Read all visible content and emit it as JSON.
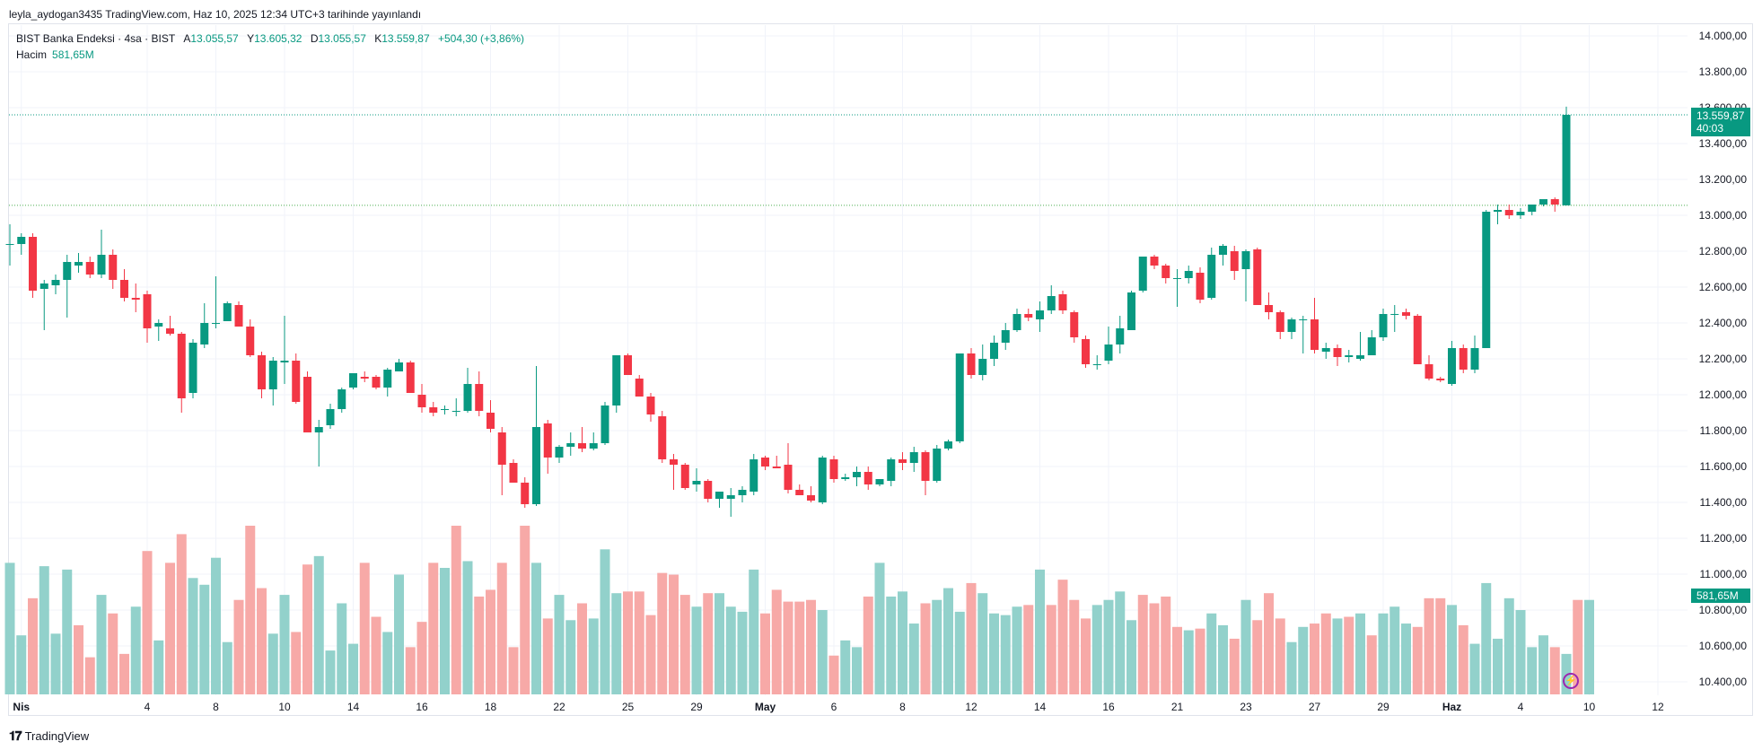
{
  "publish_header": "leyla_aydogan3435 TradingView.com, Haz 10, 2025 12:34 UTC+3 tarihinde yayınlandı",
  "legend": {
    "symbol": "BIST Banka Endeksi · 4sa · BIST",
    "open_label": "A",
    "open": "13.055,57",
    "high_label": "Y",
    "high": "13.605,32",
    "low_label": "D",
    "low": "13.055,57",
    "close_label": "K",
    "close": "13.559,87",
    "change": "+504,30 (+3,86%)",
    "volume_label": "Hacim",
    "volume": "581,65M"
  },
  "price_badge": {
    "price": "13.559,87",
    "countdown": "40:03"
  },
  "volume_badge": "581,65M",
  "brand": "TradingView",
  "colors": {
    "up": "#089981",
    "down": "#f23645",
    "up_vol": "#92d1cb",
    "down_vol": "#f7a9a7",
    "grid": "#f0f3fa"
  },
  "chart_data": {
    "type": "candlestick",
    "y_axis_ticks": [
      "14.000,00",
      "13.800,00",
      "13.600,00",
      "13.400,00",
      "13.200,00",
      "13.000,00",
      "12.800,00",
      "12.600,00",
      "12.400,00",
      "12.200,00",
      "12.000,00",
      "11.800,00",
      "11.600,00",
      "11.400,00",
      "11.200,00",
      "11.000,00",
      "10.800,00",
      "10.600,00",
      "10.400,00"
    ],
    "ylim": [
      10300,
      14000
    ],
    "x_axis_labels": [
      "Nis",
      "4",
      "8",
      "10",
      "14",
      "16",
      "18",
      "22",
      "25",
      "29",
      "May",
      "6",
      "8",
      "12",
      "14",
      "16",
      "21",
      "23",
      "27",
      "29",
      "Haz",
      "4",
      "10",
      "12"
    ],
    "x_axis_label_positions": [
      1,
      12,
      18,
      24,
      30,
      36,
      42,
      48,
      54,
      60,
      66,
      72,
      78,
      84,
      90,
      96,
      102,
      108,
      114,
      120,
      126,
      132,
      138,
      144
    ],
    "last_price_line": 13559.87,
    "prev_close_line": 13055.57,
    "candles": [
      [
        12840,
        12950,
        12720,
        12840
      ],
      [
        12840,
        12900,
        12780,
        12880
      ],
      [
        12880,
        12900,
        12540,
        12580
      ],
      [
        12590,
        12640,
        12360,
        12620
      ],
      [
        12610,
        12670,
        12560,
        12640
      ],
      [
        12640,
        12780,
        12430,
        12740
      ],
      [
        12720,
        12790,
        12680,
        12740
      ],
      [
        12740,
        12770,
        12650,
        12670
      ],
      [
        12670,
        12920,
        12650,
        12780
      ],
      [
        12780,
        12810,
        12590,
        12640
      ],
      [
        12640,
        12700,
        12520,
        12540
      ],
      [
        12540,
        12620,
        12460,
        12530
      ],
      [
        12560,
        12580,
        12290,
        12370
      ],
      [
        12380,
        12420,
        12300,
        12400
      ],
      [
        12370,
        12440,
        12330,
        12340
      ],
      [
        12340,
        12350,
        11900,
        11980
      ],
      [
        12010,
        12310,
        11980,
        12290
      ],
      [
        12280,
        12510,
        12260,
        12400
      ],
      [
        12400,
        12660,
        12370,
        12400
      ],
      [
        12410,
        12520,
        12410,
        12510
      ],
      [
        12500,
        12520,
        12380,
        12380
      ],
      [
        12380,
        12420,
        12210,
        12220
      ],
      [
        12220,
        12240,
        11980,
        12030
      ],
      [
        12030,
        12210,
        11940,
        12190
      ],
      [
        12180,
        12440,
        12060,
        12190
      ],
      [
        12190,
        12230,
        11950,
        11960
      ],
      [
        12100,
        12130,
        11790,
        11790
      ],
      [
        11790,
        11860,
        11600,
        11820
      ],
      [
        11830,
        11950,
        11810,
        11920
      ],
      [
        11920,
        12040,
        11900,
        12030
      ],
      [
        12040,
        12120,
        12030,
        12120
      ],
      [
        12100,
        12130,
        12070,
        12090
      ],
      [
        12100,
        12110,
        12030,
        12040
      ],
      [
        12040,
        12150,
        11990,
        12140
      ],
      [
        12130,
        12200,
        12130,
        12180
      ],
      [
        12180,
        12190,
        12010,
        12010
      ],
      [
        12000,
        12060,
        11900,
        11930
      ],
      [
        11930,
        11960,
        11880,
        11900
      ],
      [
        11920,
        11940,
        11890,
        11920
      ],
      [
        11910,
        11980,
        11880,
        11910
      ],
      [
        11910,
        12150,
        11900,
        12060
      ],
      [
        12060,
        12130,
        11880,
        11910
      ],
      [
        11900,
        11970,
        11790,
        11810
      ],
      [
        11790,
        11820,
        11440,
        11610
      ],
      [
        11620,
        11640,
        11510,
        11510
      ],
      [
        11510,
        11540,
        11370,
        11390
      ],
      [
        11390,
        12160,
        11380,
        11820
      ],
      [
        11840,
        11860,
        11560,
        11650
      ],
      [
        11650,
        11720,
        11620,
        11710
      ],
      [
        11710,
        11790,
        11660,
        11730
      ],
      [
        11730,
        11820,
        11680,
        11700
      ],
      [
        11700,
        11790,
        11690,
        11730
      ],
      [
        11730,
        11960,
        11720,
        11940
      ],
      [
        11940,
        12220,
        11900,
        12220
      ],
      [
        12220,
        12230,
        12110,
        12110
      ],
      [
        12090,
        12110,
        11990,
        11990
      ],
      [
        11990,
        12010,
        11850,
        11890
      ],
      [
        11880,
        11910,
        11620,
        11640
      ],
      [
        11640,
        11670,
        11470,
        11610
      ],
      [
        11610,
        11620,
        11470,
        11480
      ],
      [
        11500,
        11590,
        11460,
        11520
      ],
      [
        11520,
        11530,
        11400,
        11420
      ],
      [
        11420,
        11460,
        11370,
        11460
      ],
      [
        11420,
        11480,
        11320,
        11440
      ],
      [
        11440,
        11490,
        11400,
        11470
      ],
      [
        11460,
        11670,
        11440,
        11640
      ],
      [
        11650,
        11660,
        11580,
        11600
      ],
      [
        11600,
        11660,
        11590,
        11590
      ],
      [
        11610,
        11730,
        11450,
        11470
      ],
      [
        11470,
        11500,
        11440,
        11440
      ],
      [
        11440,
        11490,
        11400,
        11410
      ],
      [
        11400,
        11660,
        11390,
        11650
      ],
      [
        11640,
        11660,
        11510,
        11530
      ],
      [
        11530,
        11560,
        11520,
        11540
      ],
      [
        11540,
        11600,
        11490,
        11570
      ],
      [
        11570,
        11600,
        11470,
        11500
      ],
      [
        11500,
        11530,
        11490,
        11530
      ],
      [
        11520,
        11650,
        11490,
        11640
      ],
      [
        11640,
        11680,
        11580,
        11620
      ],
      [
        11620,
        11710,
        11570,
        11680
      ],
      [
        11680,
        11690,
        11440,
        11520
      ],
      [
        11520,
        11720,
        11510,
        11700
      ],
      [
        11700,
        11750,
        11690,
        11740
      ],
      [
        11740,
        12210,
        11730,
        12230
      ],
      [
        12230,
        12260,
        12090,
        12110
      ],
      [
        12110,
        12280,
        12080,
        12200
      ],
      [
        12200,
        12330,
        12160,
        12290
      ],
      [
        12290,
        12400,
        12250,
        12360
      ],
      [
        12360,
        12480,
        12350,
        12450
      ],
      [
        12450,
        12480,
        12410,
        12430
      ],
      [
        12420,
        12520,
        12350,
        12470
      ],
      [
        12470,
        12610,
        12450,
        12550
      ],
      [
        12560,
        12580,
        12450,
        12470
      ],
      [
        12460,
        12470,
        12290,
        12320
      ],
      [
        12310,
        12330,
        12150,
        12170
      ],
      [
        12170,
        12220,
        12140,
        12170
      ],
      [
        12190,
        12380,
        12170,
        12280
      ],
      [
        12280,
        12440,
        12230,
        12370
      ],
      [
        12360,
        12580,
        12360,
        12570
      ],
      [
        12580,
        12760,
        12570,
        12770
      ],
      [
        12770,
        12780,
        12700,
        12720
      ],
      [
        12720,
        12730,
        12620,
        12650
      ],
      [
        12650,
        12700,
        12490,
        12650
      ],
      [
        12650,
        12720,
        12620,
        12690
      ],
      [
        12680,
        12710,
        12510,
        12530
      ],
      [
        12540,
        12820,
        12530,
        12780
      ],
      [
        12780,
        12840,
        12720,
        12830
      ],
      [
        12800,
        12830,
        12640,
        12690
      ],
      [
        12700,
        12810,
        12520,
        12800
      ],
      [
        12810,
        12820,
        12500,
        12500
      ],
      [
        12500,
        12570,
        12420,
        12460
      ],
      [
        12460,
        12470,
        12310,
        12350
      ],
      [
        12350,
        12430,
        12310,
        12420
      ],
      [
        12420,
        12440,
        12230,
        12420
      ],
      [
        12420,
        12540,
        12230,
        12250
      ],
      [
        12240,
        12290,
        12200,
        12260
      ],
      [
        12260,
        12280,
        12160,
        12210
      ],
      [
        12210,
        12250,
        12180,
        12220
      ],
      [
        12200,
        12350,
        12190,
        12220
      ],
      [
        12220,
        12360,
        12220,
        12320
      ],
      [
        12320,
        12480,
        12300,
        12450
      ],
      [
        12450,
        12500,
        12350,
        12450
      ],
      [
        12460,
        12480,
        12420,
        12440
      ],
      [
        12440,
        12450,
        12170,
        12170
      ],
      [
        12170,
        12220,
        12080,
        12090
      ],
      [
        12090,
        12100,
        12070,
        12080
      ],
      [
        12060,
        12300,
        12050,
        12260
      ],
      [
        12260,
        12280,
        12120,
        12140
      ],
      [
        12140,
        12330,
        12120,
        12260
      ],
      [
        12260,
        13030,
        12260,
        13020
      ],
      [
        13020,
        13060,
        12950,
        13030
      ],
      [
        13030,
        13060,
        12980,
        13000
      ],
      [
        13000,
        13040,
        12980,
        13020
      ],
      [
        13020,
        13060,
        13000,
        13060
      ],
      [
        13060,
        13090,
        13050,
        13090
      ],
      [
        13090,
        13100,
        13020,
        13060
      ],
      [
        13055.57,
        13605.32,
        13055.57,
        13559.87
      ]
    ],
    "volume_levels": [
      0.78,
      0.35,
      0.57,
      0.76,
      0.36,
      0.74,
      0.41,
      0.22,
      0.59,
      0.48,
      0.24,
      0.52,
      0.85,
      0.32,
      0.78,
      0.95,
      0.69,
      0.65,
      0.81,
      0.31,
      0.56,
      1.0,
      0.63,
      0.36,
      0.59,
      0.37,
      0.77,
      0.82,
      0.26,
      0.54,
      0.3,
      0.78,
      0.46,
      0.37,
      0.71,
      0.28,
      0.43,
      0.78,
      0.75,
      1.0,
      0.79,
      0.58,
      0.62,
      0.78,
      0.28,
      1.0,
      0.78,
      0.45,
      0.59,
      0.44,
      0.54,
      0.45,
      0.86,
      0.6,
      0.61,
      0.61,
      0.47,
      0.72,
      0.71,
      0.59,
      0.52,
      0.6,
      0.6,
      0.52,
      0.49,
      0.74,
      0.48,
      0.62,
      0.55,
      0.55,
      0.56,
      0.5,
      0.23,
      0.32,
      0.28,
      0.58,
      0.78,
      0.58,
      0.61,
      0.42,
      0.54,
      0.56,
      0.63,
      0.49,
      0.66,
      0.6,
      0.48,
      0.47,
      0.52,
      0.53,
      0.74,
      0.53,
      0.68,
      0.56,
      0.45,
      0.53,
      0.56,
      0.61,
      0.44,
      0.59,
      0.54,
      0.58,
      0.4,
      0.38,
      0.39,
      0.48,
      0.41,
      0.33,
      0.56,
      0.44,
      0.6,
      0.45,
      0.31,
      0.4,
      0.42,
      0.48,
      0.45,
      0.46,
      0.48,
      0.35,
      0.48,
      0.52,
      0.42,
      0.4,
      0.57,
      0.57,
      0.53,
      0.41,
      0.3,
      0.66,
      0.33,
      0.57,
      0.5,
      0.28,
      0.35,
      0.28,
      0.24,
      0.56,
      0.56
    ],
    "volume_up": [
      true,
      true,
      false,
      true,
      true,
      true,
      false,
      false,
      true,
      false,
      false,
      true,
      false,
      true,
      false,
      false,
      true,
      true,
      true,
      true,
      false,
      false,
      false,
      true,
      true,
      false,
      false,
      true,
      true,
      true,
      true,
      false,
      false,
      true,
      true,
      false,
      false,
      false,
      true,
      false,
      true,
      false,
      false,
      false,
      false,
      false,
      true,
      false,
      true,
      true,
      false,
      true,
      true,
      true,
      false,
      false,
      false,
      false,
      false,
      false,
      true,
      false,
      true,
      true,
      true,
      true,
      false,
      false,
      false,
      false,
      false,
      true,
      false,
      true,
      true,
      false,
      true,
      true,
      true,
      true,
      false,
      true,
      true,
      true,
      false,
      true,
      true,
      true,
      true,
      false,
      true,
      false,
      false,
      false,
      false,
      true,
      true,
      true,
      true,
      false,
      false,
      false,
      false,
      true,
      false,
      true,
      true,
      false,
      true,
      false,
      false,
      false,
      true,
      true,
      false,
      false,
      true,
      false,
      true,
      false,
      true,
      true,
      true,
      false,
      false,
      false,
      true,
      false,
      true,
      true,
      true,
      true,
      true,
      true,
      true,
      false,
      true,
      false,
      true
    ]
  }
}
